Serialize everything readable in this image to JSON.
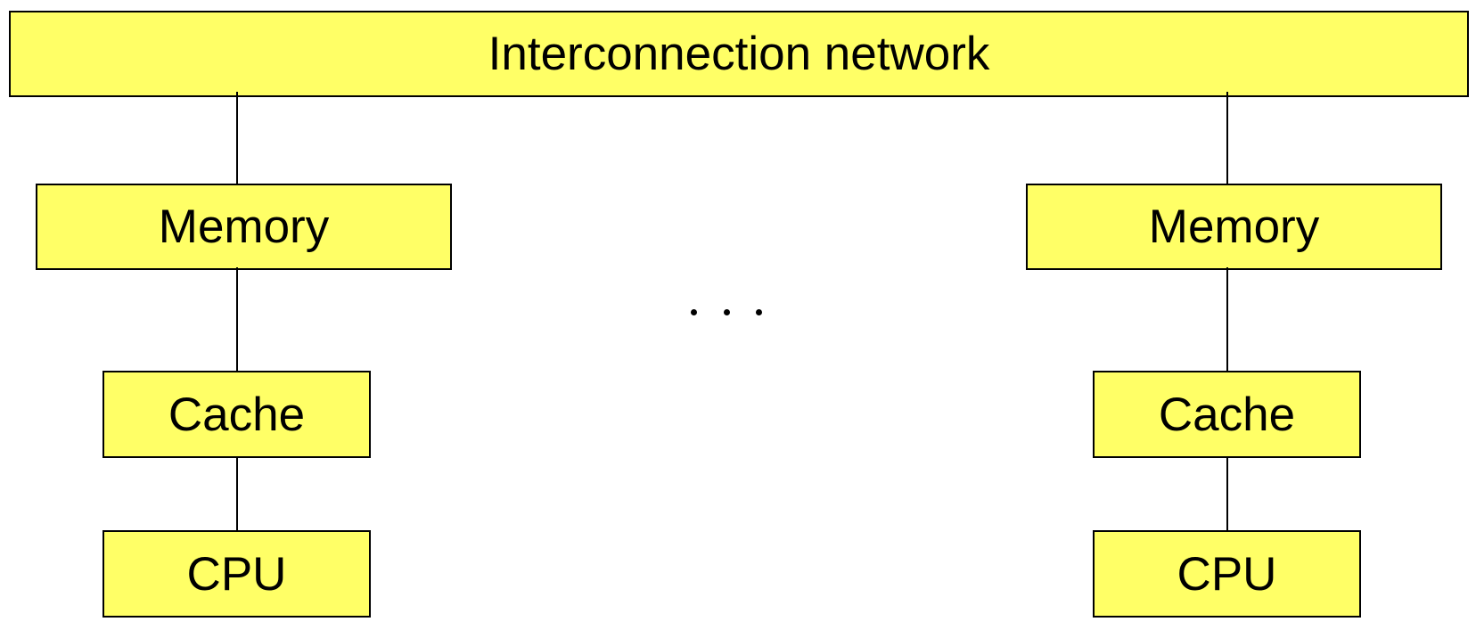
{
  "colors": {
    "box_fill": "#FFFF66",
    "stroke": "#000000",
    "text": "#000000",
    "background": "#FFFFFF"
  },
  "diagram": {
    "network_label": "Interconnection network",
    "left_column": {
      "memory_label": "Memory",
      "cache_label": "Cache",
      "cpu_label": "CPU"
    },
    "right_column": {
      "memory_label": "Memory",
      "cache_label": "Cache",
      "cpu_label": "CPU"
    }
  }
}
